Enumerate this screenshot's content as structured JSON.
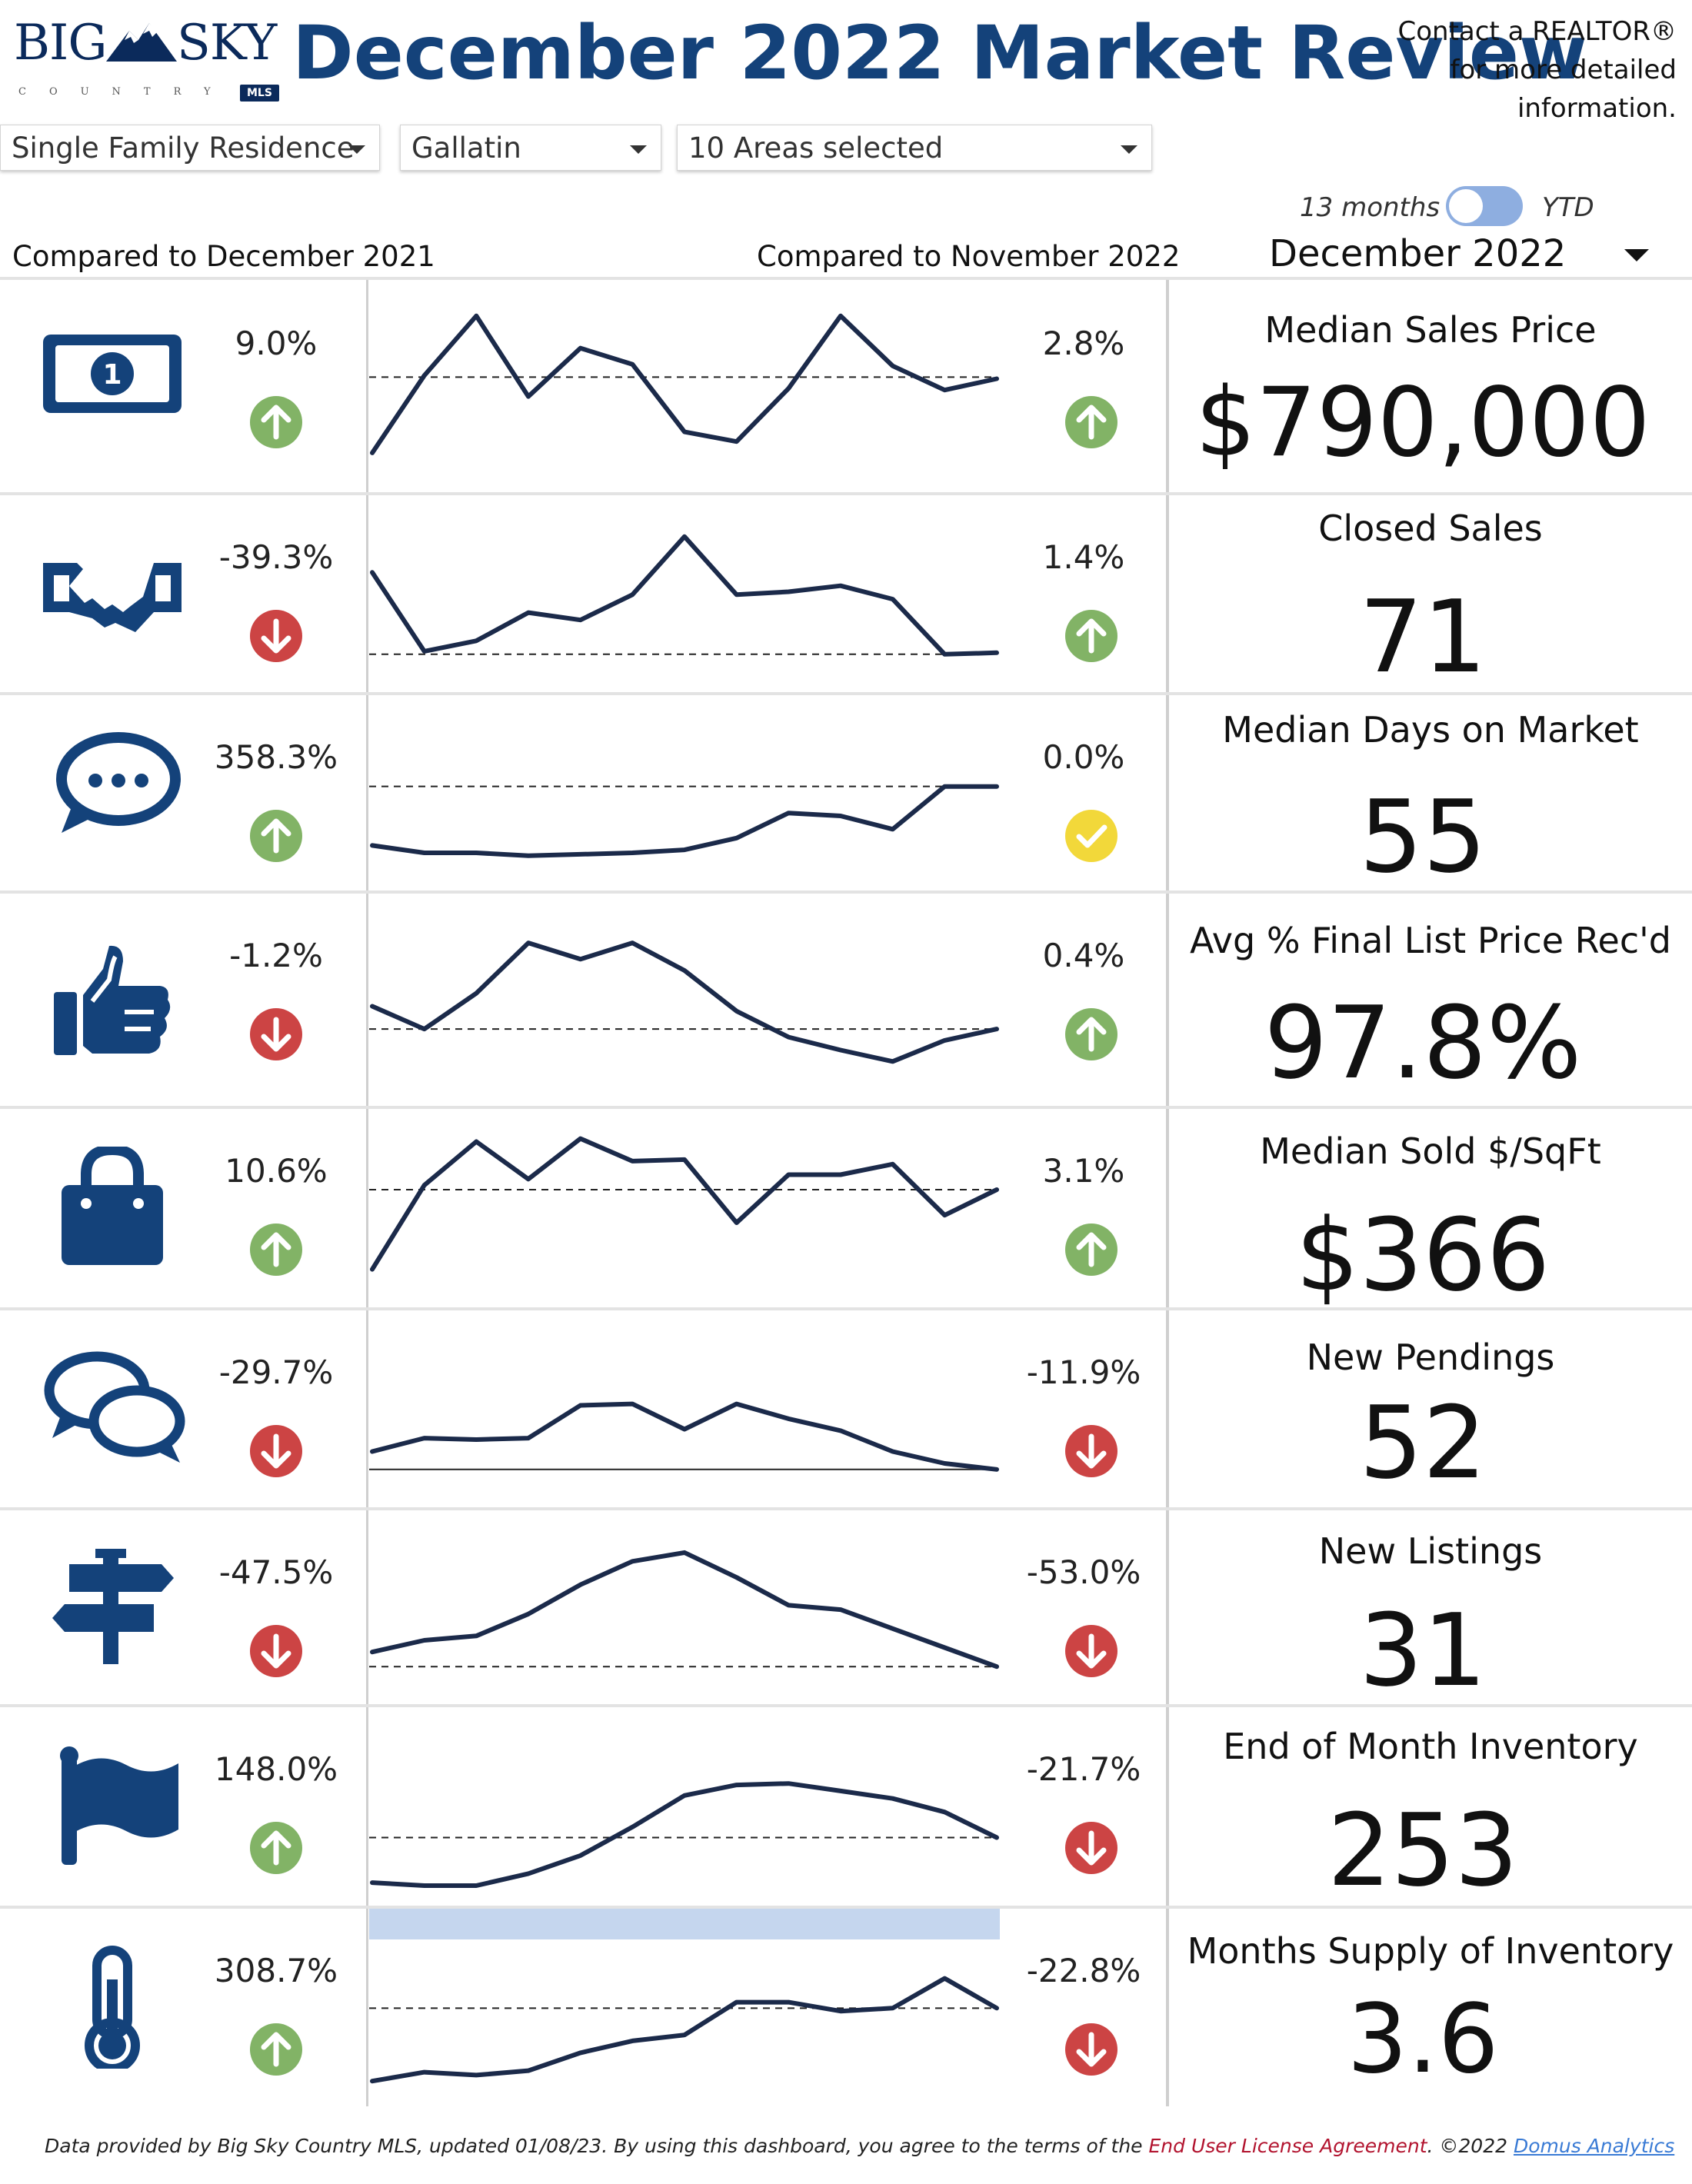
{
  "logo": {
    "big": "BIG",
    "sky": "SKY",
    "country": "COUNTRY",
    "mls": "MLS"
  },
  "header": {
    "title": "December 2022 Market Review",
    "contact_lines": [
      "Contact a REALTOR®",
      "for more detailed",
      "information."
    ]
  },
  "filters": {
    "property_type": "Single Family Residence",
    "county": "Gallatin",
    "areas": "10 Areas selected"
  },
  "toggle": {
    "left_label": "13 months",
    "right_label": "YTD",
    "state": "13 months"
  },
  "comparisons": {
    "yoy_label": "Compared to December 2021",
    "mom_label": "Compared to November 2022"
  },
  "month_selector": {
    "value": "December 2022"
  },
  "colors": {
    "brand": "#14427a",
    "up": "#82b366",
    "down": "#cc4444",
    "neutral": "#f2d83a",
    "line": "#1b2a4a"
  },
  "metrics": [
    {
      "name": "Median Sales Price",
      "value": "$790,000",
      "icon": "money-bill-icon",
      "yoy": "9.0%",
      "yoy_dir": "up",
      "mom": "2.8%",
      "mom_dir": "up",
      "chart_data": {
        "type": "line",
        "values": [
          0.0,
          0.48,
          0.85,
          0.35,
          0.65,
          0.55,
          0.13,
          0.07,
          0.4,
          0.85,
          0.54,
          0.39,
          0.46
        ],
        "reference": 0.47
      }
    },
    {
      "name": "Closed Sales",
      "value": "71",
      "icon": "handshake-icon",
      "yoy": "-39.3%",
      "yoy_dir": "down",
      "mom": "1.4%",
      "mom_dir": "up",
      "chart_data": {
        "type": "line",
        "values": [
          0.55,
          0.02,
          0.09,
          0.28,
          0.23,
          0.4,
          0.79,
          0.4,
          0.42,
          0.46,
          0.37,
          0.0,
          0.01
        ],
        "reference": 0.0
      }
    },
    {
      "name": "Median Days on Market",
      "value": "55",
      "icon": "speech-bubble-icon",
      "yoy": "358.3%",
      "yoy_dir": "up",
      "mom": "0.0%",
      "mom_dir": "neutral",
      "chart_data": {
        "type": "line",
        "values": [
          0.05,
          0.0,
          0.0,
          -0.02,
          -0.01,
          0.0,
          0.02,
          0.1,
          0.27,
          0.25,
          0.16,
          0.45,
          0.45
        ],
        "reference": 0.45
      }
    },
    {
      "name": "Avg % Final List Price Rec'd",
      "value": "97.8%",
      "icon": "thumbs-up-icon",
      "yoy": "-1.2%",
      "yoy_dir": "down",
      "mom": "0.4%",
      "mom_dir": "up",
      "chart_data": {
        "type": "line",
        "values": [
          0.37,
          0.23,
          0.45,
          0.76,
          0.66,
          0.76,
          0.59,
          0.34,
          0.18,
          0.1,
          0.03,
          0.16,
          0.23
        ],
        "reference": 0.23
      }
    },
    {
      "name": "Median Sold $/SqFt",
      "value": "$366",
      "icon": "shopping-bag-icon",
      "yoy": "10.6%",
      "yoy_dir": "up",
      "mom": "3.1%",
      "mom_dir": "up",
      "chart_data": {
        "type": "line",
        "values": [
          0.0,
          0.56,
          0.85,
          0.6,
          0.87,
          0.72,
          0.73,
          0.31,
          0.63,
          0.63,
          0.7,
          0.36,
          0.53
        ],
        "reference": 0.53
      }
    },
    {
      "name": "New Pendings",
      "value": "52",
      "icon": "conversation-icon",
      "yoy": "-29.7%",
      "yoy_dir": "down",
      "mom": "-11.9%",
      "mom_dir": "down",
      "chart_data": {
        "type": "line",
        "values": [
          0.12,
          0.21,
          0.2,
          0.21,
          0.43,
          0.44,
          0.27,
          0.44,
          0.34,
          0.26,
          0.12,
          0.04,
          0.0
        ],
        "reference": 0.0
      }
    },
    {
      "name": "New Listings",
      "value": "31",
      "icon": "signpost-icon",
      "yoy": "-47.5%",
      "yoy_dir": "down",
      "mom": "-53.0%",
      "mom_dir": "down",
      "chart_data": {
        "type": "line",
        "values": [
          0.1,
          0.18,
          0.21,
          0.36,
          0.56,
          0.72,
          0.78,
          0.61,
          0.42,
          0.39,
          0.26,
          0.13,
          0.0
        ],
        "reference": 0.0
      }
    },
    {
      "name": "End of Month Inventory",
      "value": "253",
      "icon": "flag-icon",
      "yoy": "148.0%",
      "yoy_dir": "up",
      "mom": "-21.7%",
      "mom_dir": "down",
      "chart_data": {
        "type": "line",
        "values": [
          -0.1,
          -0.12,
          -0.12,
          -0.04,
          0.08,
          0.27,
          0.48,
          0.55,
          0.56,
          0.51,
          0.46,
          0.37,
          0.2
        ],
        "reference": 0.2
      }
    },
    {
      "name": "Months Supply of Inventory",
      "value": "3.6",
      "icon": "thermometer-icon",
      "yoy": "308.7%",
      "yoy_dir": "up",
      "mom": "-22.8%",
      "mom_dir": "down",
      "chart_data": {
        "type": "line",
        "values": [
          -0.09,
          -0.03,
          -0.05,
          -0.02,
          0.1,
          0.18,
          0.22,
          0.44,
          0.44,
          0.38,
          0.4,
          0.6,
          0.4
        ],
        "reference": 0.4,
        "band": true
      }
    }
  ],
  "footer": {
    "prefix": "Data provided by Big Sky Country MLS, updated 01/08/23.  By using this dashboard, you agree to the terms of the",
    "license": "End User License Agreement",
    "copyright": ".  ©2022",
    "company": "Domus Analytics"
  }
}
